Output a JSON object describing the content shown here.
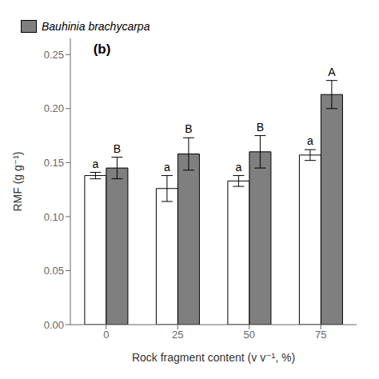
{
  "chart_data": {
    "type": "bar",
    "title": "(b)",
    "xlabel": "Rock fragment content (v v⁻¹, %)",
    "ylabel": "RMF (g g⁻¹)",
    "categories": [
      "0",
      "25",
      "50",
      "75"
    ],
    "series": [
      {
        "color": "#ffffff",
        "values": [
          0.138,
          0.126,
          0.133,
          0.157
        ],
        "errors": [
          0.003,
          0.012,
          0.005,
          0.005
        ],
        "letters": [
          "a",
          "a",
          "a",
          "a"
        ]
      },
      {
        "name": "Bauhinia brachycarpa",
        "color": "#7f7f7f",
        "values": [
          0.145,
          0.158,
          0.16,
          0.213
        ],
        "errors": [
          0.01,
          0.015,
          0.015,
          0.013
        ],
        "letters": [
          "B",
          "B",
          "B",
          "A"
        ]
      }
    ],
    "ylim": [
      0.0,
      0.265
    ],
    "yticks": [
      {
        "value": 0.0,
        "label": "0.00"
      },
      0.05,
      {
        "value": 0.1,
        "label": "0.10"
      },
      0.15,
      {
        "value": 0.2,
        "label": "0.20"
      },
      0.25
    ],
    "grid": false,
    "legend": "upper left"
  }
}
